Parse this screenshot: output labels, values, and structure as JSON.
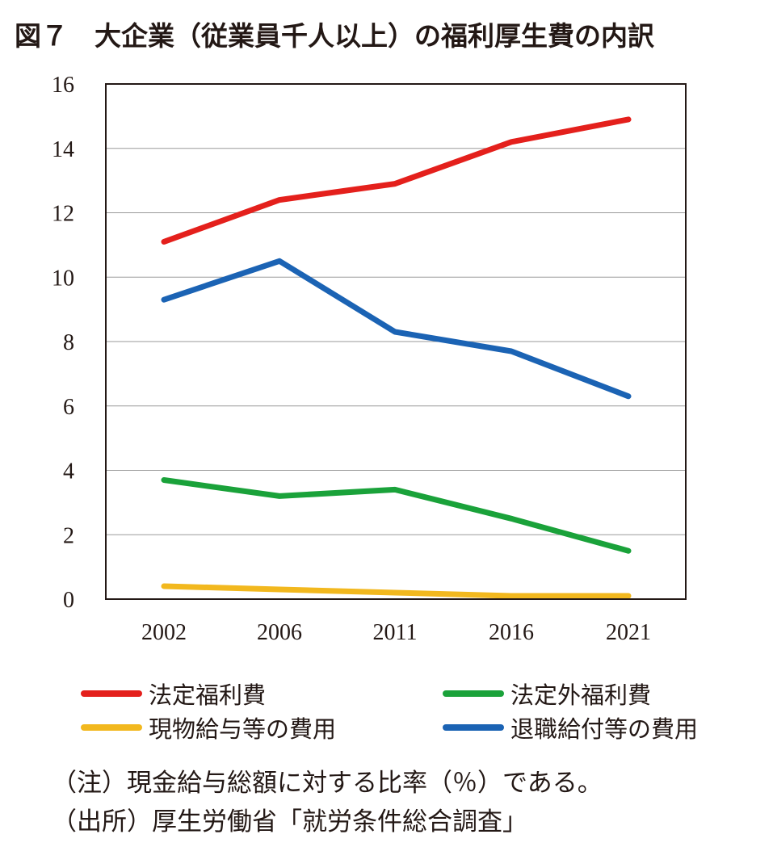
{
  "title": "図７　大企業（従業員千人以上）の福利厚生費の内訳",
  "chart_data": {
    "type": "line",
    "x": [
      "2002",
      "2006",
      "2011",
      "2016",
      "2021"
    ],
    "ylim": [
      0,
      16
    ],
    "yticks": [
      "0",
      "2",
      "4",
      "6",
      "8",
      "10",
      "12",
      "14",
      "16"
    ],
    "grid": "horizontal",
    "legend_position": "bottom",
    "series": [
      {
        "name": "法定福利費",
        "color": "#e4201c",
        "values": [
          11.1,
          12.4,
          12.9,
          14.2,
          14.9
        ]
      },
      {
        "name": "法定外福利費",
        "color": "#1aa23a",
        "values": [
          3.7,
          3.2,
          3.4,
          2.5,
          1.5
        ]
      },
      {
        "name": "現物給与等の費用",
        "color": "#f2b81e",
        "values": [
          0.4,
          0.3,
          0.2,
          0.1,
          0.1
        ]
      },
      {
        "name": "退職給付等の費用",
        "color": "#1b63b4",
        "values": [
          9.3,
          10.5,
          8.3,
          7.7,
          6.3
        ]
      }
    ]
  },
  "notes": {
    "note": "（注）現金給与総額に対する比率（％）である。",
    "source": "（出所）厚生労働省「就労条件総合調査」"
  }
}
